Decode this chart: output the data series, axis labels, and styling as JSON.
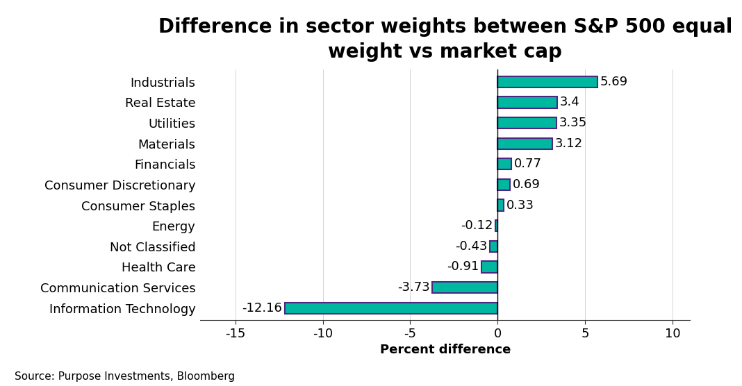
{
  "title": "Difference in sector weights between S&P 500 equal\nweight vs market cap",
  "categories": [
    "Information Technology",
    "Communication Services",
    "Health Care",
    "Not Classified",
    "Energy",
    "Consumer Staples",
    "Consumer Discretionary",
    "Financials",
    "Materials",
    "Utilities",
    "Real Estate",
    "Industrials"
  ],
  "values": [
    -12.16,
    -3.73,
    -0.91,
    -0.43,
    -0.12,
    0.33,
    0.69,
    0.77,
    3.12,
    3.35,
    3.4,
    5.69
  ],
  "bar_color": "#00B8A0",
  "bar_edge_color": "#4B2882",
  "xlabel": "Percent difference",
  "source": "Source: Purpose Investments, Bloomberg",
  "xlim": [
    -17,
    11
  ],
  "xticks": [
    -15,
    -10,
    -5,
    0,
    5,
    10
  ],
  "title_fontsize": 20,
  "label_fontsize": 13,
  "tick_fontsize": 13,
  "source_fontsize": 11,
  "bar_height": 0.55
}
